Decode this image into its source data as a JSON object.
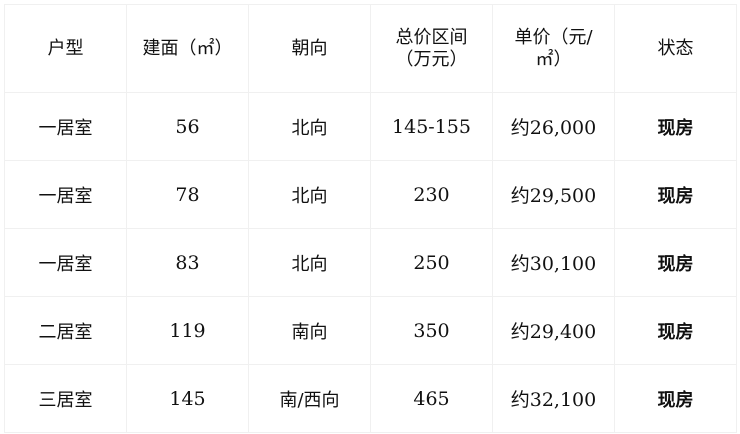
{
  "table": {
    "headers": [
      "户型",
      "建面（㎡）",
      "朝向",
      "总价区间（万元）",
      "单价（元/㎡）",
      "状态"
    ],
    "rows": [
      [
        "一居室",
        "56",
        "北向",
        "145-155",
        "约26,000",
        "现房"
      ],
      [
        "一居室",
        "78",
        "北向",
        "230",
        "约29,500",
        "现房"
      ],
      [
        "一居室",
        "83",
        "北向",
        "250",
        "约30,100",
        "现房"
      ],
      [
        "二居室",
        "119",
        "南向",
        "350",
        "约29,400",
        "现房"
      ],
      [
        "三居室",
        "145",
        "南/西向",
        "465",
        "约32,100",
        "现房"
      ]
    ]
  }
}
